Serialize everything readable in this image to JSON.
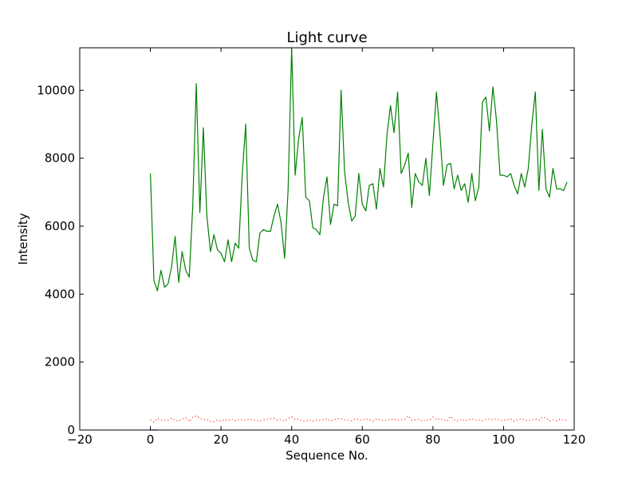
{
  "chart_data": {
    "type": "line",
    "title": "Light curve",
    "xlabel": "Sequence No.",
    "ylabel": "Intensity",
    "xlim": [
      -20,
      120
    ],
    "ylim": [
      0,
      11250
    ],
    "x_ticks": [
      -20,
      0,
      20,
      40,
      60,
      80,
      100,
      120
    ],
    "x_tick_labels": [
      "−20",
      "0",
      "20",
      "40",
      "60",
      "80",
      "100",
      "120"
    ],
    "y_ticks": [
      0,
      2000,
      4000,
      6000,
      8000,
      10000
    ],
    "y_tick_labels": [
      "0",
      "2000",
      "4000",
      "6000",
      "8000",
      "10000"
    ],
    "grid": false,
    "legend": "none",
    "series": [
      {
        "color": "#008000",
        "style": "solid",
        "x": [
          0,
          1,
          2,
          3,
          4,
          5,
          6,
          7,
          8,
          9,
          10,
          11,
          12,
          13,
          14,
          15,
          16,
          17,
          18,
          19,
          20,
          21,
          22,
          23,
          24,
          25,
          26,
          27,
          28,
          29,
          30,
          31,
          32,
          33,
          34,
          35,
          36,
          37,
          38,
          39,
          40,
          41,
          42,
          43,
          44,
          45,
          46,
          47,
          48,
          49,
          50,
          51,
          52,
          53,
          54,
          55,
          56,
          57,
          58,
          59,
          60,
          61,
          62,
          63,
          64,
          65,
          66,
          67,
          68,
          69,
          70,
          71,
          72,
          73,
          74,
          75,
          76,
          77,
          78,
          79,
          80,
          81,
          82,
          83,
          84,
          85,
          86,
          87,
          88,
          89,
          90,
          91,
          92,
          93,
          94,
          95,
          96,
          97,
          98,
          99,
          100,
          101,
          102,
          103,
          104,
          105,
          106,
          107,
          108,
          109,
          110,
          111,
          112,
          113,
          114,
          115,
          116,
          117,
          118
        ],
        "values": [
          7550,
          4400,
          4100,
          4700,
          4200,
          4300,
          4800,
          5700,
          4350,
          5250,
          4700,
          4500,
          6600,
          10200,
          6400,
          8900,
          6300,
          5250,
          5750,
          5300,
          5200,
          4950,
          5600,
          4950,
          5500,
          5350,
          7500,
          9000,
          5350,
          5000,
          4950,
          5800,
          5900,
          5850,
          5850,
          6300,
          6650,
          6100,
          5050,
          7100,
          11250,
          7500,
          8600,
          9200,
          6850,
          6750,
          5950,
          5900,
          5750,
          6850,
          7450,
          6050,
          6650,
          6600,
          10000,
          7600,
          6700,
          6150,
          6300,
          7550,
          6650,
          6450,
          7200,
          7250,
          6500,
          7700,
          7150,
          8700,
          9550,
          8750,
          9950,
          7550,
          7800,
          8150,
          6550,
          7550,
          7300,
          7200,
          8000,
          6900,
          8450,
          9950,
          8700,
          7200,
          7800,
          7850,
          7100,
          7500,
          7050,
          7250,
          6700,
          7550,
          6750,
          7150,
          9650,
          9800,
          8800,
          10100,
          9100,
          7500,
          7500,
          7450,
          7550,
          7200,
          6950,
          7550,
          7150,
          7700,
          9000,
          9950,
          7050,
          8850,
          7100,
          6850,
          7700,
          7100,
          7100,
          7050,
          7300
        ]
      },
      {
        "color": "#ff0000",
        "style": "dotted",
        "x": [
          0,
          1,
          2,
          3,
          4,
          5,
          6,
          7,
          8,
          9,
          10,
          11,
          12,
          13,
          14,
          15,
          16,
          17,
          18,
          19,
          20,
          21,
          22,
          23,
          24,
          25,
          26,
          27,
          28,
          29,
          30,
          31,
          32,
          33,
          34,
          35,
          36,
          37,
          38,
          39,
          40,
          41,
          42,
          43,
          44,
          45,
          46,
          47,
          48,
          49,
          50,
          51,
          52,
          53,
          54,
          55,
          56,
          57,
          58,
          59,
          60,
          61,
          62,
          63,
          64,
          65,
          66,
          67,
          68,
          69,
          70,
          71,
          72,
          73,
          74,
          75,
          76,
          77,
          78,
          79,
          80,
          81,
          82,
          83,
          84,
          85,
          86,
          87,
          88,
          89,
          90,
          91,
          92,
          93,
          94,
          95,
          96,
          97,
          98,
          99,
          100,
          101,
          102,
          103,
          104,
          105,
          106,
          107,
          108,
          109,
          110,
          111,
          112,
          113,
          114,
          115,
          116,
          117,
          118
        ],
        "values": [
          300,
          230,
          340,
          290,
          300,
          280,
          350,
          290,
          260,
          330,
          360,
          250,
          380,
          420,
          350,
          300,
          310,
          260,
          240,
          300,
          260,
          310,
          280,
          330,
          270,
          300,
          310,
          280,
          320,
          300,
          280,
          260,
          300,
          320,
          330,
          340,
          290,
          310,
          260,
          340,
          390,
          310,
          330,
          270,
          250,
          300,
          260,
          300,
          280,
          310,
          330,
          260,
          300,
          340,
          330,
          300,
          290,
          270,
          340,
          310,
          290,
          330,
          300,
          260,
          330,
          310,
          270,
          310,
          300,
          330,
          290,
          300,
          320,
          420,
          290,
          300,
          320,
          260,
          300,
          290,
          380,
          300,
          340,
          300,
          260,
          400,
          300,
          260,
          320,
          280,
          300,
          340,
          290,
          300,
          270,
          310,
          320,
          300,
          340,
          280,
          290,
          300,
          330,
          260,
          300,
          340,
          300,
          270,
          300,
          330,
          290,
          380,
          360,
          260,
          300,
          270,
          320,
          300,
          280
        ]
      },
      {
        "color": "#0000ff",
        "style": "solid",
        "x": [
          0,
          1,
          2
        ],
        "values": [
          0,
          0,
          0
        ]
      }
    ]
  }
}
